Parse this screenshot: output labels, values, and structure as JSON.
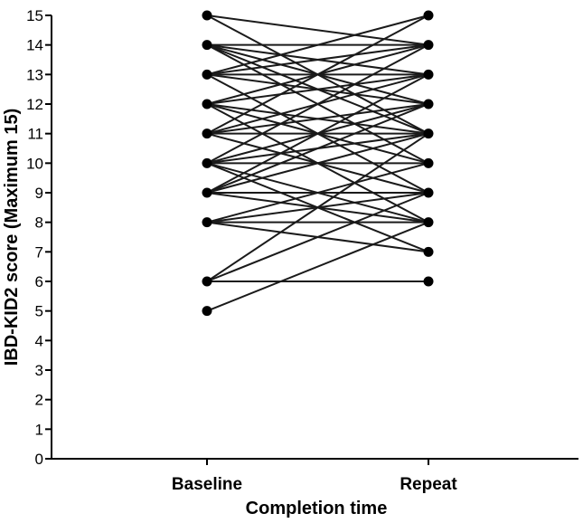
{
  "chart_data": {
    "type": "line",
    "title": "",
    "xlabel": "Completion time",
    "ylabel": "IBD-KID2 score (Maximum 15)",
    "categories": [
      "Baseline",
      "Repeat"
    ],
    "yticks": [
      "0",
      "1",
      "2",
      "3",
      "4",
      "5",
      "6",
      "7",
      "8",
      "9",
      "10",
      "11",
      "12",
      "13",
      "14",
      "15"
    ],
    "ylim": [
      0,
      15
    ],
    "grid": false,
    "legend": "none",
    "line_color": "#1a1a1a",
    "marker_color": "#000000",
    "pairs": [
      [
        15,
        14
      ],
      [
        15,
        11
      ],
      [
        14,
        14
      ],
      [
        14,
        13
      ],
      [
        14,
        11
      ],
      [
        14,
        10
      ],
      [
        14,
        12
      ],
      [
        13,
        14
      ],
      [
        13,
        15
      ],
      [
        13,
        12
      ],
      [
        13,
        13
      ],
      [
        13,
        9
      ],
      [
        12,
        11
      ],
      [
        12,
        8
      ],
      [
        12,
        13
      ],
      [
        12,
        10
      ],
      [
        12,
        14
      ],
      [
        11,
        11
      ],
      [
        11,
        9
      ],
      [
        11,
        13
      ],
      [
        11,
        12
      ],
      [
        11,
        15
      ],
      [
        10,
        10
      ],
      [
        10,
        12
      ],
      [
        10,
        8
      ],
      [
        10,
        7
      ],
      [
        10,
        14
      ],
      [
        10,
        11
      ],
      [
        9,
        9
      ],
      [
        9,
        11
      ],
      [
        9,
        8
      ],
      [
        9,
        13
      ],
      [
        9,
        12
      ],
      [
        8,
        8
      ],
      [
        8,
        7
      ],
      [
        8,
        10
      ],
      [
        8,
        9
      ],
      [
        6,
        6
      ],
      [
        6,
        11
      ],
      [
        6,
        9
      ],
      [
        5,
        8
      ]
    ]
  }
}
